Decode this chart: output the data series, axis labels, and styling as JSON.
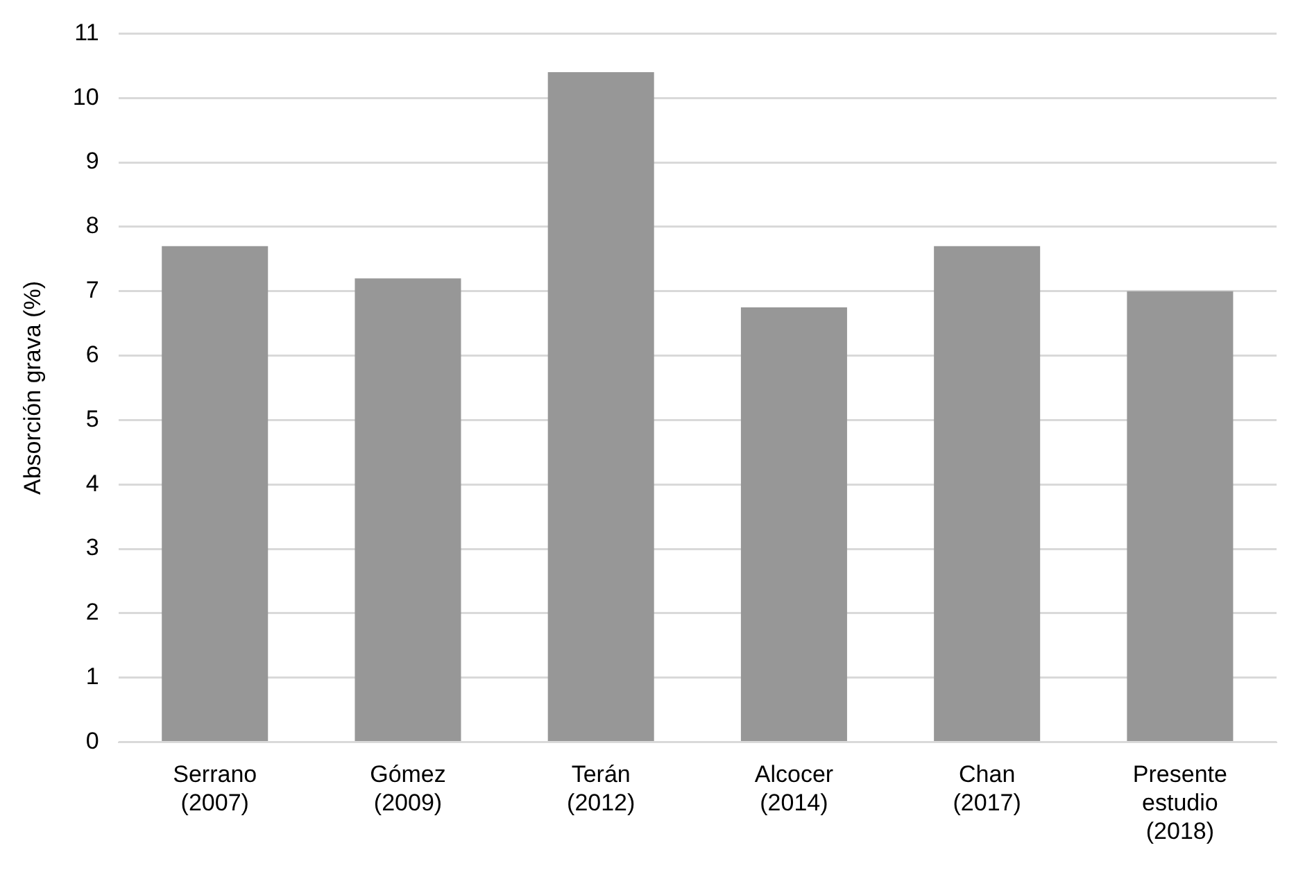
{
  "chart_data": {
    "type": "bar",
    "ylabel": "Absorción grava (%)",
    "categories": [
      "Serrano (2007)",
      "Gómez (2009)",
      "Terán (2012)",
      "Alcocer (2014)",
      "Chan (2017)",
      "Presente estudio (2018)"
    ],
    "values": [
      7.7,
      7.2,
      10.4,
      6.75,
      7.7,
      7.0
    ],
    "color": "#979797",
    "ylim": [
      0,
      11
    ],
    "yticks": [
      0,
      1,
      2,
      3,
      4,
      5,
      6,
      7,
      8,
      9,
      10,
      11
    ],
    "grid": "y"
  }
}
